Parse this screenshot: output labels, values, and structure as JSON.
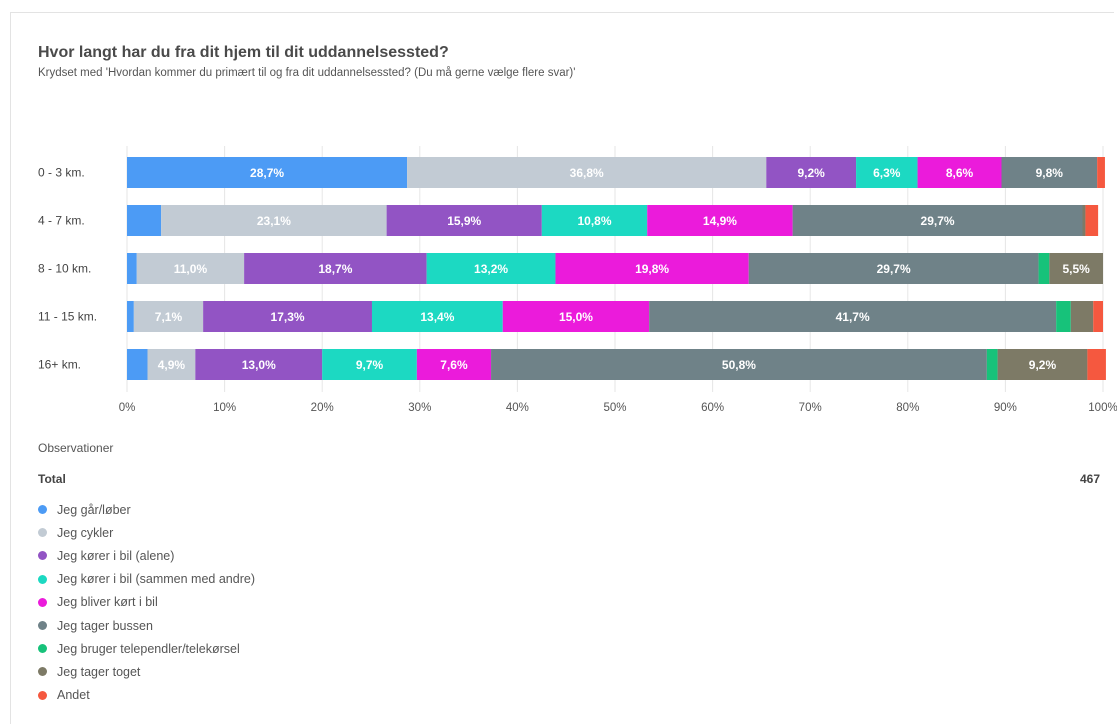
{
  "title": "Hvor langt har du fra dit hjem til dit uddannelsessted?",
  "subtitle": "Krydset med 'Hvordan kommer du primært til og fra dit uddannelsessted? (Du må gerne vælge flere svar)'",
  "observations_label": "Observationer",
  "total_label": "Total",
  "total_value": "467",
  "chart_data": {
    "type": "bar",
    "orientation": "horizontal",
    "stacked": true,
    "percent_stacked": true,
    "categories": [
      "0 - 3 km.",
      "4 - 7 km.",
      "8 - 10 km.",
      "11 - 15 km.",
      "16+ km."
    ],
    "xlim": [
      0,
      100
    ],
    "x_ticks": [
      "0%",
      "10%",
      "20%",
      "30%",
      "40%",
      "50%",
      "60%",
      "70%",
      "80%",
      "90%",
      "100%"
    ],
    "grid": true,
    "legend_position": "bottom-left",
    "series": [
      {
        "name": "Jeg går/løber",
        "color": "#4c9bf5",
        "values": [
          28.7,
          3.5,
          1.0,
          0.7,
          2.1
        ],
        "labels": [
          "28,7%",
          "",
          "",
          "",
          ""
        ],
        "label_color": "#ffffff"
      },
      {
        "name": "Jeg cykler",
        "color": "#c2cbd4",
        "values": [
          36.8,
          23.1,
          11.0,
          7.1,
          4.9
        ],
        "labels": [
          "36,8%",
          "23,1%",
          "11,0%",
          "7,1%",
          "4,9%"
        ],
        "label_color": "#ffffff"
      },
      {
        "name": "Jeg kører i bil (alene)",
        "color": "#9254c4",
        "values": [
          9.2,
          15.9,
          18.7,
          17.3,
          13.0
        ],
        "labels": [
          "9,2%",
          "15,9%",
          "18,7%",
          "17,3%",
          "13,0%"
        ],
        "label_color": "#ffffff"
      },
      {
        "name": "Jeg kører i bil (sammen med andre)",
        "color": "#1cd9c2",
        "values": [
          6.3,
          10.8,
          13.2,
          13.4,
          9.7
        ],
        "labels": [
          "6,3%",
          "10,8%",
          "13,2%",
          "13,4%",
          "9,7%"
        ],
        "label_color": "#ffffff"
      },
      {
        "name": "Jeg bliver kørt i bil",
        "color": "#eb1bdb",
        "values": [
          8.6,
          14.9,
          19.8,
          15.0,
          7.6
        ],
        "labels": [
          "8,6%",
          "14,9%",
          "19,8%",
          "15,0%",
          "7,6%"
        ],
        "label_color": "#ffffff"
      },
      {
        "name": "Jeg tager bussen",
        "color": "#6f8288",
        "values": [
          9.8,
          29.7,
          29.7,
          41.7,
          50.8
        ],
        "labels": [
          "9,8%",
          "29,7%",
          "29,7%",
          "41,7%",
          "50,8%"
        ],
        "label_color": "#ffffff"
      },
      {
        "name": "Jeg bruger telependler/telekørsel",
        "color": "#17c27a",
        "values": [
          0.0,
          0.0,
          1.1,
          1.5,
          1.1
        ],
        "labels": [
          "",
          "",
          "",
          "",
          ""
        ],
        "label_color": "#ffffff"
      },
      {
        "name": "Jeg tager toget",
        "color": "#7d7a66",
        "values": [
          0.0,
          0.3,
          5.5,
          2.3,
          9.2
        ],
        "labels": [
          "",
          "",
          "5,5%",
          "",
          "9,2%"
        ],
        "label_color": "#ffffff"
      },
      {
        "name": "Andet",
        "color": "#f5583f",
        "values": [
          0.8,
          1.3,
          0.0,
          1.0,
          1.9
        ],
        "labels": [
          "",
          "",
          "",
          "",
          ""
        ],
        "label_color": "#ffffff"
      }
    ]
  }
}
